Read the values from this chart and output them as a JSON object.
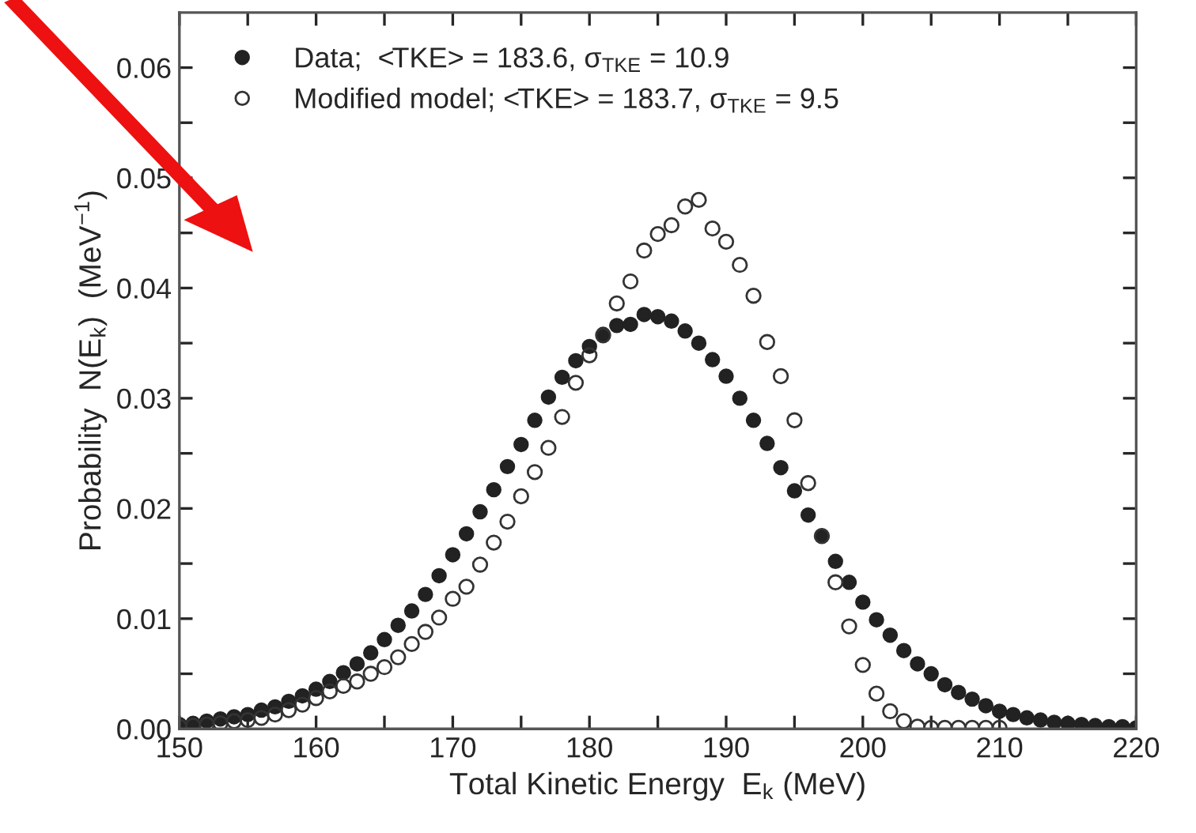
{
  "chart_data": {
    "type": "scatter",
    "xlabel": "Total Kinetic Energy  E$_{k}$ (MeV)",
    "ylabel": "Probability  N(E$_{k}$)  (MeV$^{−1}$)",
    "x": [
      150,
      151,
      152,
      153,
      154,
      155,
      156,
      157,
      158,
      159,
      160,
      161,
      162,
      163,
      164,
      165,
      166,
      167,
      168,
      169,
      170,
      171,
      172,
      173,
      174,
      175,
      176,
      177,
      178,
      179,
      180,
      181,
      182,
      183,
      184,
      185,
      186,
      187,
      188,
      189,
      190,
      191,
      192,
      193,
      194,
      195,
      196,
      197,
      198,
      199,
      200,
      201,
      202,
      203,
      204,
      205,
      206,
      207,
      208,
      209,
      210,
      211,
      212,
      213,
      214,
      215,
      216,
      217,
      218,
      219,
      220
    ],
    "series": [
      {
        "name": "Data;  <TKE> = 183.6, σ$_{TKE}$ = 10.9",
        "color": "#222222",
        "values": [
          0.0004,
          0.0005,
          0.0007,
          0.0009,
          0.0011,
          0.0013,
          0.0017,
          0.002,
          0.0025,
          0.003,
          0.0036,
          0.0043,
          0.0051,
          0.0059,
          0.0069,
          0.0081,
          0.0094,
          0.0107,
          0.0122,
          0.0139,
          0.0158,
          0.0177,
          0.0197,
          0.0217,
          0.0238,
          0.0258,
          0.028,
          0.0301,
          0.0319,
          0.0334,
          0.0347,
          0.0358,
          0.0366,
          0.0367,
          0.0376,
          0.0374,
          0.037,
          0.0361,
          0.035,
          0.0335,
          0.032,
          0.03,
          0.028,
          0.0259,
          0.0237,
          0.0216,
          0.0194,
          0.0175,
          0.0152,
          0.0133,
          0.0115,
          0.0099,
          0.0085,
          0.0071,
          0.0059,
          0.005,
          0.004,
          0.0033,
          0.0027,
          0.0021,
          0.0016,
          0.0013,
          0.001,
          0.0008,
          0.0006,
          0.0005,
          0.0004,
          0.0003,
          0.0002,
          0.0002,
          0.0001
        ]
      },
      {
        "name": "Modified model; <TKE> = 183.7, σ$_{TKE}$ = 9.5",
        "color": "#333333",
        "x": [
          150,
          151,
          152,
          153,
          154,
          155,
          156,
          157,
          158,
          159,
          160,
          161,
          162,
          163,
          164,
          165,
          166,
          167,
          168,
          169,
          170,
          171,
          172,
          173,
          174,
          175,
          176,
          177,
          178,
          179,
          180,
          181,
          182,
          183,
          184,
          185,
          186,
          187,
          188,
          189,
          190,
          191,
          192,
          193,
          194,
          195,
          196,
          197,
          198,
          199,
          200,
          201,
          202,
          203,
          204,
          205,
          206,
          207,
          208,
          209,
          210
        ],
        "values": [
          0.0002,
          0.0003,
          0.0004,
          0.0005,
          0.0007,
          0.0008,
          0.001,
          0.0013,
          0.0017,
          0.0022,
          0.0028,
          0.0034,
          0.0039,
          0.0043,
          0.005,
          0.0056,
          0.0065,
          0.0077,
          0.0088,
          0.0101,
          0.0118,
          0.0129,
          0.0149,
          0.0169,
          0.0188,
          0.0211,
          0.0233,
          0.0255,
          0.0283,
          0.0314,
          0.0339,
          0.0357,
          0.0386,
          0.0406,
          0.0434,
          0.0449,
          0.0457,
          0.0474,
          0.048,
          0.0454,
          0.0442,
          0.0421,
          0.0393,
          0.0351,
          0.032,
          0.028,
          0.0223,
          0.0175,
          0.0133,
          0.0093,
          0.0058,
          0.0032,
          0.0016,
          0.0007,
          0.0002,
          0.0001,
          0.0001,
          0.0001,
          0.0001,
          0.0001,
          0.0001
        ]
      }
    ],
    "xlim": [
      150,
      220
    ],
    "xticks": [
      150,
      {
        "value": 155,
        "label": null
      },
      160,
      {
        "value": 165,
        "label": null
      },
      170,
      {
        "value": 175,
        "label": null
      },
      180,
      {
        "value": 185,
        "label": null
      },
      190,
      {
        "value": 195,
        "label": null
      },
      200,
      {
        "value": 205,
        "label": null
      },
      210,
      {
        "value": 215,
        "label": null
      },
      220
    ],
    "ylim": [
      0,
      0.065
    ],
    "yticks": [
      {
        "value": 0,
        "label": "0.00"
      },
      {
        "value": 0.005,
        "label": null
      },
      {
        "value": 0.01,
        "label": "0.01"
      },
      {
        "value": 0.015,
        "label": null
      },
      {
        "value": 0.02,
        "label": "0.02"
      },
      {
        "value": 0.025,
        "label": null
      },
      {
        "value": 0.03,
        "label": "0.03"
      },
      {
        "value": 0.035,
        "label": null
      },
      {
        "value": 0.04,
        "label": "0.04"
      },
      {
        "value": 0.045,
        "label": null
      },
      {
        "value": 0.05,
        "label": "0.05"
      },
      {
        "value": 0.055,
        "label": null
      },
      {
        "value": 0.06,
        "label": "0.06"
      }
    ],
    "marker": "circle",
    "grid": false,
    "legend": "top left"
  }
}
